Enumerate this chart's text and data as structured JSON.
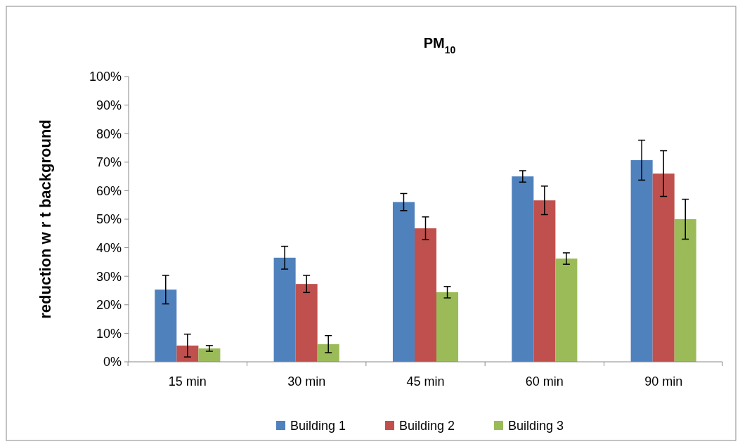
{
  "chart_data": {
    "type": "bar",
    "title": "PM$_{10}$",
    "ylabel": "reduction w r t background",
    "categories": [
      "15 min",
      "30 min",
      "45 min",
      "60 min",
      "90 min"
    ],
    "series": [
      {
        "name": "Building 1",
        "color": "#4f81bd",
        "values": [
          25.3,
          36.5,
          56,
          65,
          70.7
        ],
        "errors": [
          5,
          4,
          3,
          2,
          7
        ]
      },
      {
        "name": "Building 2",
        "color": "#c0504d",
        "values": [
          5.7,
          27.3,
          46.8,
          56.6,
          66
        ],
        "errors": [
          4,
          3,
          4,
          5,
          8
        ]
      },
      {
        "name": "Building 3",
        "color": "#9bbb59",
        "values": [
          4.7,
          6.2,
          24.4,
          36.2,
          50
        ],
        "errors": [
          1,
          3,
          2,
          2,
          7
        ]
      }
    ],
    "ylim": [
      0,
      100
    ],
    "yticks": [
      {
        "value": 0,
        "label": "0%"
      },
      {
        "value": 10,
        "label": "10%"
      },
      {
        "value": 20,
        "label": "20%"
      },
      {
        "value": 30,
        "label": "30%"
      },
      {
        "value": 40,
        "label": "40%"
      },
      {
        "value": 50,
        "label": "50%"
      },
      {
        "value": 60,
        "label": "60%"
      },
      {
        "value": 70,
        "label": "70%"
      },
      {
        "value": 80,
        "label": "80%"
      },
      {
        "value": 90,
        "label": "90%"
      },
      {
        "value": 100,
        "label": "100%"
      }
    ],
    "grid": false,
    "legend": "bottom"
  }
}
